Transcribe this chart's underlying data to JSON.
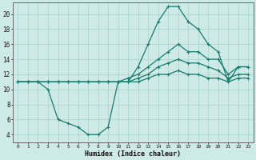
{
  "x": [
    0,
    1,
    2,
    3,
    4,
    5,
    6,
    7,
    8,
    9,
    10,
    11,
    12,
    13,
    14,
    15,
    16,
    17,
    18,
    19,
    20,
    21,
    22,
    23
  ],
  "line_main": [
    11,
    11,
    11,
    10,
    6,
    5.5,
    5,
    4,
    4,
    5,
    11,
    11,
    13,
    16,
    19,
    21,
    21,
    19,
    18,
    16,
    15,
    11,
    13,
    13
  ],
  "line_upper": [
    11,
    11,
    11,
    11,
    11,
    11,
    11,
    11,
    11,
    11,
    11,
    11.5,
    12,
    13,
    14,
    15,
    16,
    15,
    15,
    14,
    14,
    12,
    13,
    13
  ],
  "line_mid": [
    11,
    11,
    11,
    11,
    11,
    11,
    11,
    11,
    11,
    11,
    11,
    11,
    11.5,
    12,
    13,
    13.5,
    14,
    13.5,
    13.5,
    13,
    12.5,
    11.5,
    12,
    12
  ],
  "line_lower": [
    11,
    11,
    11,
    11,
    11,
    11,
    11,
    11,
    11,
    11,
    11,
    11,
    11,
    11.5,
    12,
    12,
    12.5,
    12,
    12,
    11.5,
    11.5,
    11,
    11.5,
    11.5
  ],
  "color": "#1a7a6e",
  "bg_color": "#ceeae6",
  "grid_color": "#aed4d0",
  "xlabel": "Humidex (Indice chaleur)",
  "ylim": [
    3,
    21.5
  ],
  "xlim": [
    -0.5,
    23.5
  ],
  "yticks": [
    4,
    6,
    8,
    10,
    12,
    14,
    16,
    18,
    20
  ],
  "xticks": [
    0,
    1,
    2,
    3,
    4,
    5,
    6,
    7,
    8,
    9,
    10,
    11,
    12,
    13,
    14,
    15,
    16,
    17,
    18,
    19,
    20,
    21,
    22,
    23
  ]
}
